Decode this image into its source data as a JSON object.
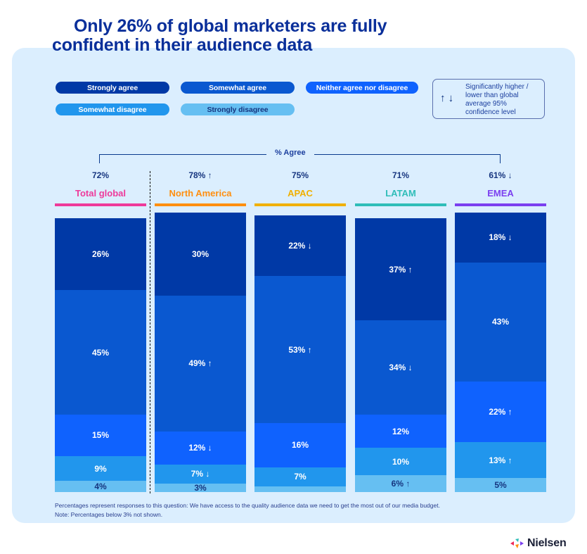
{
  "title": {
    "line1": "Only 26% of global marketers are fully",
    "line2": "confident in their audience data"
  },
  "legend": {
    "items": [
      {
        "label": "Strongly agree",
        "color": "#0039a6"
      },
      {
        "label": "Somewhat agree",
        "color": "#0a58d0"
      },
      {
        "label": "Neither agree nor disagree",
        "color": "#0f62fe"
      },
      {
        "label": "Somewhat disagree",
        "color": "#2196ed"
      },
      {
        "label": "Strongly disagree",
        "color": "#66bff2"
      }
    ],
    "significance": {
      "arrows": "↑ ↓",
      "text": "Significantly higher / lower than global average 95% confidence level"
    }
  },
  "bracket_label": "% Agree",
  "footnotes": [
    "Percentages represent responses to this question: We have access to the quality audience data we need to get the most out of our media budget.",
    "Note: Percentages below 3% not shown."
  ],
  "brand": {
    "name": "Nielsen"
  },
  "chart_data": {
    "type": "bar",
    "stacked": true,
    "title": "Only 26% of global marketers are fully confident in their audience data",
    "categories": [
      "Total global",
      "North America",
      "APAC",
      "LATAM",
      "EMEA"
    ],
    "category_colors": [
      "#ee3a9a",
      "#ff8f0f",
      "#f0b000",
      "#2fbdb8",
      "#7b3ff0"
    ],
    "agree_totals": [
      {
        "value": "72%",
        "sig": ""
      },
      {
        "value": "78%",
        "sig": "up"
      },
      {
        "value": "75%",
        "sig": ""
      },
      {
        "value": "71%",
        "sig": ""
      },
      {
        "value": "61%",
        "sig": "down"
      }
    ],
    "series": [
      {
        "name": "Strongly agree",
        "color": "#0039a6",
        "values": [
          26,
          30,
          22,
          37,
          18
        ],
        "sig": [
          "",
          "",
          "down",
          "up",
          "down"
        ]
      },
      {
        "name": "Somewhat agree",
        "color": "#0a58d0",
        "values": [
          45,
          49,
          53,
          34,
          43
        ],
        "sig": [
          "",
          "up",
          "up",
          "down",
          ""
        ]
      },
      {
        "name": "Neither agree nor disagree",
        "color": "#0f62fe",
        "values": [
          15,
          12,
          16,
          12,
          22
        ],
        "sig": [
          "",
          "down",
          "",
          "",
          "up"
        ]
      },
      {
        "name": "Somewhat disagree",
        "color": "#2196ed",
        "values": [
          9,
          7,
          7,
          10,
          13
        ],
        "sig": [
          "",
          "down",
          "",
          "",
          "up"
        ]
      },
      {
        "name": "Strongly disagree",
        "color": "#66bff2",
        "values": [
          4,
          3,
          2,
          6,
          5
        ],
        "sig": [
          "",
          "",
          "",
          "up",
          ""
        ]
      }
    ],
    "label_threshold_percent": 3,
    "xlabel": "",
    "ylabel": "",
    "ylim": [
      0,
      100
    ],
    "grid": false,
    "legend_position": "top"
  }
}
